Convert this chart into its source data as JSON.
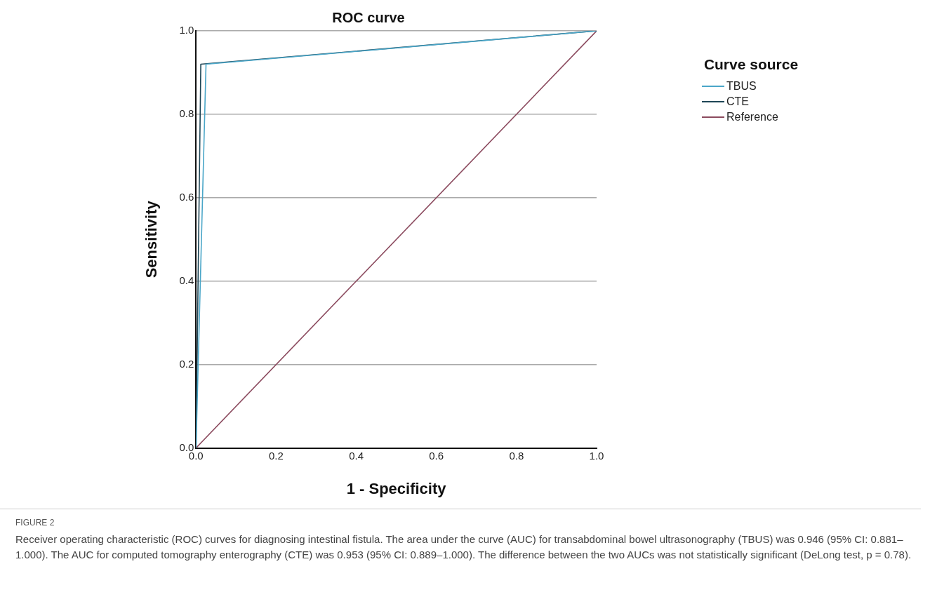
{
  "chart_data": {
    "type": "line",
    "title": "ROC curve",
    "xlabel": "1 - Specificity",
    "ylabel": "Sensitivity",
    "legend_title": "Curve source",
    "series": [
      {
        "name": "TBUS",
        "color": "#4aa6c8",
        "x": [
          0,
          0.025,
          1
        ],
        "values": [
          0,
          0.92,
          1
        ]
      },
      {
        "name": "CTE",
        "color": "#1e4656",
        "x": [
          0,
          0.012,
          1
        ],
        "values": [
          0,
          0.92,
          1
        ]
      },
      {
        "name": "Reference",
        "color": "#8b4a5e",
        "x": [
          0,
          1
        ],
        "values": [
          0,
          1
        ]
      }
    ],
    "xlim": [
      0,
      1
    ],
    "ylim": [
      0,
      1
    ],
    "xticks": [
      {
        "value": 0,
        "label": "0.0"
      },
      {
        "value": 0.2,
        "label": "0.2"
      },
      {
        "value": 0.4,
        "label": "0.4"
      },
      {
        "value": 0.6,
        "label": "0.6"
      },
      {
        "value": 0.8,
        "label": "0.8"
      },
      {
        "value": 1,
        "label": "1.0"
      }
    ],
    "yticks": [
      {
        "value": 0,
        "label": "0.0"
      },
      {
        "value": 0.2,
        "label": "0.2"
      },
      {
        "value": 0.4,
        "label": "0.4"
      },
      {
        "value": 0.6,
        "label": "0.6"
      },
      {
        "value": 0.8,
        "label": "0.8"
      },
      {
        "value": 1,
        "label": "1.0"
      }
    ],
    "grid": "y",
    "legend": "top right",
    "marker": "none",
    "line_style": "solid",
    "annotations": [
      "FIGURE 2",
      "Receiver operating characteristic (ROC) curves for diagnosing intestinal fistula. The area under the curve (AUC) for transabdominal bowel ultrasonography (TBUS) was 0.946 (95% CI: 0.881–1.000). The AUC for computed tomography enterography (CTE) was 0.953 (95% CI: 0.889–1.000). The difference between the two AUCs was not statistically significant (DeLong test, p = 0.78)."
    ]
  }
}
